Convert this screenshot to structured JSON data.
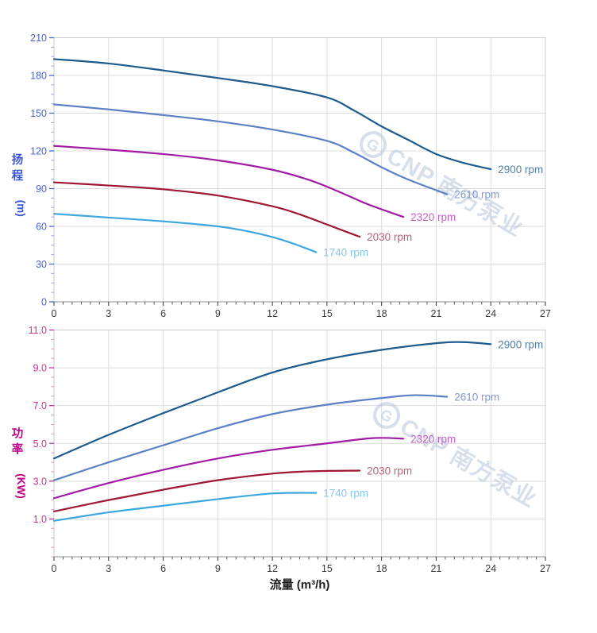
{
  "page": {
    "background": "#ffffff"
  },
  "watermark": {
    "logo_letter": "G",
    "text": "CNP 南方泵业",
    "color": "#b7c7da"
  },
  "colors": {
    "grid": "#dcdcdc",
    "plot_border": "#cccccc",
    "bottom_axis": "#8c8c8c",
    "x_tick": "#333333",
    "x_tick_label": "#3a3a3a",
    "x_axis_title": "#1f1f1f"
  },
  "chart_data": [
    {
      "id": "head",
      "type": "line",
      "title": "",
      "ylabel": "扬程",
      "ylabel_unit": "(m)",
      "xlabel": "",
      "grid": true,
      "legend_position": "curve-end-labels",
      "xlim": [
        0,
        27
      ],
      "ylim": [
        0,
        210
      ],
      "x_tick_values": [
        0,
        3,
        6,
        9,
        12,
        15,
        18,
        21,
        24,
        27
      ],
      "x_tick_labels": [
        "0",
        "3",
        "6",
        "9",
        "12",
        "15",
        "18",
        "21",
        "24",
        "27"
      ],
      "x_minor_step": 0.5,
      "y_tick_values": [
        0,
        30,
        60,
        90,
        120,
        150,
        180,
        210
      ],
      "y_tick_labels": [
        "0",
        "30",
        "60",
        "90",
        "120",
        "150",
        "180",
        "210"
      ],
      "y_minor_step": 7.5,
      "axis_title_color": "#3b55d6",
      "tick_label_color": "#4a63db",
      "major_tick_color": "#4a63db",
      "minor_tick_color": "#8aa0ee",
      "series": [
        {
          "name": "2900 rpm",
          "color": "#1d5a8d",
          "label_color": "#5581a7",
          "x": [
            0,
            3,
            6,
            9,
            12,
            15,
            16.5,
            18,
            19.5,
            21,
            22.5,
            24
          ],
          "y": [
            193,
            189.5,
            184,
            178,
            171.5,
            162.5,
            152,
            139.5,
            128.5,
            117.5,
            110.5,
            105.5
          ]
        },
        {
          "name": "2610 rpm",
          "color": "#5b80c6",
          "label_color": "#8399d3",
          "x": [
            0,
            3,
            6,
            9,
            12,
            15,
            16.5,
            18,
            19.5,
            21.6
          ],
          "y": [
            157,
            153,
            148.5,
            143.5,
            137,
            128,
            118.5,
            107,
            97,
            85.5
          ]
        },
        {
          "name": "2320 rpm",
          "color": "#a11ba5",
          "label_color": "#c060c4",
          "x": [
            0,
            3,
            6,
            9,
            12,
            14,
            15.5,
            17,
            18.2,
            19.2
          ],
          "y": [
            124,
            121,
            117.5,
            112.5,
            105,
            97,
            88.5,
            79,
            72.5,
            67.5
          ]
        },
        {
          "name": "2030 rpm",
          "color": "#9e1733",
          "label_color": "#b86573",
          "x": [
            0,
            3,
            6,
            9,
            12,
            13.5,
            15,
            16,
            16.8
          ],
          "y": [
            95,
            92.5,
            89.5,
            84.5,
            76,
            69.5,
            61.5,
            56,
            51.7
          ]
        },
        {
          "name": "1740 rpm",
          "color": "#3ea6de",
          "label_color": "#86c7ec",
          "x": [
            0,
            3,
            6,
            9,
            10.5,
            12,
            13.2,
            14.4
          ],
          "y": [
            70,
            67,
            64,
            60,
            56.5,
            51.5,
            46,
            39.5
          ]
        }
      ]
    },
    {
      "id": "power",
      "type": "line",
      "title": "",
      "ylabel": "功率",
      "ylabel_unit": "(KW)",
      "xlabel": "流量 (m³/h)",
      "grid": true,
      "legend_position": "curve-end-labels",
      "xlim": [
        0,
        27
      ],
      "ylim": [
        -1,
        11
      ],
      "x_tick_values": [
        0,
        3,
        6,
        9,
        12,
        15,
        18,
        21,
        24,
        27
      ],
      "x_tick_labels": [
        "0",
        "3",
        "6",
        "9",
        "12",
        "15",
        "18",
        "21",
        "24",
        "27"
      ],
      "x_minor_step": 0.5,
      "y_tick_values": [
        1,
        3,
        5,
        7,
        9,
        11
      ],
      "y_tick_labels": [
        "1.0",
        "3.0",
        "5.0",
        "7.0",
        "9.0",
        "11.0"
      ],
      "y_minor_step": 0.5,
      "axis_title_color": "#bf0087",
      "tick_label_color": "#cb2f9e",
      "major_tick_color": "#cb2f9e",
      "minor_tick_color": "#e48cc8",
      "series": [
        {
          "name": "2900 rpm",
          "color": "#1d5a8d",
          "label_color": "#5581a7",
          "x": [
            0,
            3,
            6,
            9,
            12,
            15,
            18,
            21,
            22.5,
            24
          ],
          "y": [
            4.2,
            5.45,
            6.6,
            7.7,
            8.75,
            9.45,
            9.95,
            10.3,
            10.36,
            10.25
          ]
        },
        {
          "name": "2610 rpm",
          "color": "#5b80c6",
          "label_color": "#8399d3",
          "x": [
            0,
            3,
            6,
            9,
            12,
            15,
            18,
            19.8,
            21.6
          ],
          "y": [
            3.05,
            4.0,
            4.9,
            5.8,
            6.55,
            7.05,
            7.4,
            7.55,
            7.47
          ]
        },
        {
          "name": "2320 rpm",
          "color": "#a11ba5",
          "label_color": "#c060c4",
          "x": [
            0,
            3,
            6,
            9,
            12,
            15,
            17.5,
            19.2
          ],
          "y": [
            2.1,
            2.9,
            3.6,
            4.2,
            4.66,
            5.0,
            5.28,
            5.25
          ]
        },
        {
          "name": "2030 rpm",
          "color": "#9e1733",
          "label_color": "#b86573",
          "x": [
            0,
            3,
            6,
            9,
            12,
            14,
            16.8
          ],
          "y": [
            1.4,
            2.0,
            2.55,
            3.05,
            3.4,
            3.52,
            3.56
          ]
        },
        {
          "name": "1740 rpm",
          "color": "#3ea6de",
          "label_color": "#86c7ec",
          "x": [
            0,
            3,
            6,
            9,
            12,
            14.4
          ],
          "y": [
            0.9,
            1.35,
            1.7,
            2.05,
            2.35,
            2.38
          ]
        }
      ]
    }
  ]
}
